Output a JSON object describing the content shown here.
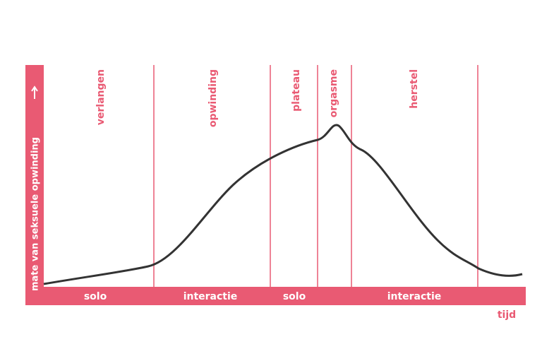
{
  "y_axis_label": "mate van seksuele opwinding",
  "x_axis_label": "tijd",
  "phases": [
    "verlangen",
    "opwinding",
    "plateau",
    "orgasme",
    "herstel"
  ],
  "modes": [
    "solo",
    "interactie",
    "solo",
    "interactie"
  ]
}
